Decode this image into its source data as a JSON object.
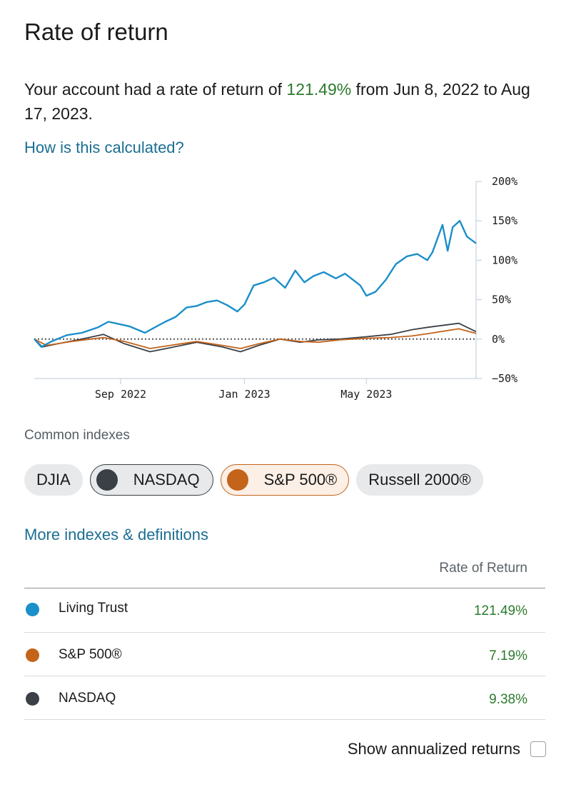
{
  "header": {
    "title": "Rate of return"
  },
  "summary": {
    "prefix": "Your account had a rate of return of ",
    "value": "121.49%",
    "suffix": " from Jun 8, 2022 to Aug 17, 2023."
  },
  "links": {
    "calc": "How is this calculated?",
    "more": "More indexes & definitions"
  },
  "chart_data": {
    "type": "line",
    "y_ticks": [
      "200%",
      "150%",
      "100%",
      "50%",
      "0%",
      "−50%"
    ],
    "y_values": [
      200,
      150,
      100,
      50,
      0,
      -50
    ],
    "ylim": [
      -50,
      200
    ],
    "x_ticks": [
      "Sep 2022",
      "Jan 2023",
      "May 2023"
    ],
    "x_tick_dates": [
      "2022-09-01",
      "2023-01-01",
      "2023-05-01"
    ],
    "x_range": [
      "2022-06-08",
      "2023-08-17"
    ],
    "zero_line": "dotted",
    "series": [
      {
        "color": "#1a8fc9",
        "points": [
          [
            "2022-06-08",
            0
          ],
          [
            "2022-06-15",
            -10
          ],
          [
            "2022-06-25",
            -3
          ],
          [
            "2022-07-10",
            5
          ],
          [
            "2022-07-25",
            8
          ],
          [
            "2022-08-10",
            15
          ],
          [
            "2022-08-20",
            22
          ],
          [
            "2022-09-10",
            16
          ],
          [
            "2022-09-25",
            8
          ],
          [
            "2022-10-05",
            15
          ],
          [
            "2022-10-15",
            22
          ],
          [
            "2022-10-25",
            28
          ],
          [
            "2022-11-05",
            40
          ],
          [
            "2022-11-15",
            42
          ],
          [
            "2022-11-25",
            47
          ],
          [
            "2022-12-05",
            49
          ],
          [
            "2022-12-15",
            43
          ],
          [
            "2022-12-25",
            35
          ],
          [
            "2023-01-01",
            44
          ],
          [
            "2023-01-10",
            68
          ],
          [
            "2023-01-20",
            72
          ],
          [
            "2023-01-30",
            78
          ],
          [
            "2023-02-10",
            65
          ],
          [
            "2023-02-20",
            87
          ],
          [
            "2023-03-01",
            72
          ],
          [
            "2023-03-10",
            80
          ],
          [
            "2023-03-20",
            85
          ],
          [
            "2023-04-01",
            77
          ],
          [
            "2023-04-10",
            83
          ],
          [
            "2023-04-25",
            68
          ],
          [
            "2023-05-01",
            55
          ],
          [
            "2023-05-10",
            60
          ],
          [
            "2023-05-20",
            75
          ],
          [
            "2023-05-30",
            95
          ],
          [
            "2023-06-10",
            105
          ],
          [
            "2023-06-20",
            108
          ],
          [
            "2023-06-30",
            100
          ],
          [
            "2023-07-05",
            110
          ],
          [
            "2023-07-15",
            145
          ],
          [
            "2023-07-20",
            112
          ],
          [
            "2023-07-25",
            142
          ],
          [
            "2023-08-01",
            150
          ],
          [
            "2023-08-08",
            130
          ],
          [
            "2023-08-17",
            121.49
          ]
        ]
      },
      {
        "color": "#c4631a",
        "points": [
          [
            "2022-06-08",
            0
          ],
          [
            "2022-06-20",
            -8
          ],
          [
            "2022-07-15",
            -3
          ],
          [
            "2022-08-15",
            2
          ],
          [
            "2022-09-05",
            -3
          ],
          [
            "2022-09-30",
            -12
          ],
          [
            "2022-10-20",
            -8
          ],
          [
            "2022-11-15",
            -3
          ],
          [
            "2022-12-10",
            -8
          ],
          [
            "2022-12-28",
            -12
          ],
          [
            "2023-01-15",
            -6
          ],
          [
            "2023-02-05",
            0
          ],
          [
            "2023-02-25",
            -3
          ],
          [
            "2023-03-15",
            -4
          ],
          [
            "2023-04-05",
            -1
          ],
          [
            "2023-05-01",
            1
          ],
          [
            "2023-05-25",
            2
          ],
          [
            "2023-06-15",
            4
          ],
          [
            "2023-07-01",
            7
          ],
          [
            "2023-07-31",
            13
          ],
          [
            "2023-08-17",
            7.19
          ]
        ]
      },
      {
        "color": "#3a4046",
        "points": [
          [
            "2022-06-08",
            0
          ],
          [
            "2022-06-16",
            -10
          ],
          [
            "2022-07-01",
            -6
          ],
          [
            "2022-07-25",
            0
          ],
          [
            "2022-08-15",
            6
          ],
          [
            "2022-09-05",
            -6
          ],
          [
            "2022-09-30",
            -16
          ],
          [
            "2022-10-20",
            -11
          ],
          [
            "2022-11-15",
            -4
          ],
          [
            "2022-12-10",
            -10
          ],
          [
            "2022-12-28",
            -16
          ],
          [
            "2023-01-15",
            -8
          ],
          [
            "2023-02-05",
            0
          ],
          [
            "2023-02-25",
            -4
          ],
          [
            "2023-03-15",
            -1
          ],
          [
            "2023-04-05",
            0
          ],
          [
            "2023-05-01",
            3
          ],
          [
            "2023-05-25",
            6
          ],
          [
            "2023-06-15",
            12
          ],
          [
            "2023-07-01",
            15
          ],
          [
            "2023-07-31",
            20
          ],
          [
            "2023-08-17",
            9.38
          ]
        ]
      }
    ]
  },
  "indexes": {
    "label": "Common indexes",
    "chips": [
      {
        "label": "DJIA",
        "selected": false
      },
      {
        "label": "NASDAQ",
        "selected": true,
        "color": "#3a4046"
      },
      {
        "label": "S&P 500®",
        "selected": true,
        "color": "#c4631a"
      },
      {
        "label": "Russell 2000®",
        "selected": false
      }
    ]
  },
  "table": {
    "header": "Rate of Return",
    "rows": [
      {
        "name": "Living Trust",
        "value": "121.49%",
        "color": "#1a8fc9"
      },
      {
        "name": "S&P 500®",
        "value": "7.19%",
        "color": "#c4631a"
      },
      {
        "name": "NASDAQ",
        "value": "9.38%",
        "color": "#3a4046"
      }
    ]
  },
  "annualized": {
    "label": "Show annualized returns",
    "checked": false
  }
}
